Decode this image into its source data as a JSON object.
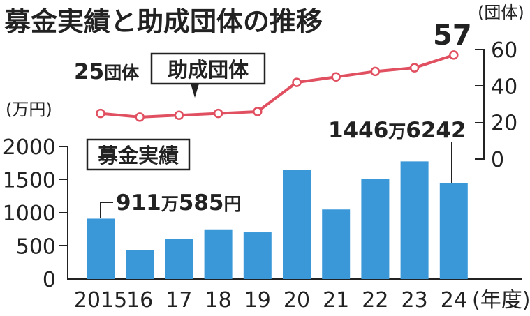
{
  "chart_data": {
    "title": "募金実績と助成団体の推移",
    "type": "bar+line",
    "x_unit": "(年度)",
    "categories": [
      "2015",
      "16",
      "17",
      "18",
      "19",
      "20",
      "21",
      "22",
      "23",
      "24"
    ],
    "bar_series": {
      "name": "募金実績",
      "unit": "(万円)",
      "values": [
        911,
        440,
        600,
        750,
        705,
        1650,
        1050,
        1510,
        1775,
        1446
      ],
      "ylim": [
        0,
        2000
      ],
      "yticks": [
        "0",
        "500",
        "1000",
        "1500",
        "2000"
      ]
    },
    "line_series": {
      "name": "助成団体",
      "unit": "(団体)",
      "values": [
        25,
        23,
        24,
        25,
        26,
        42,
        45,
        48,
        50,
        57
      ],
      "ylim": [
        0,
        60
      ],
      "yticks": [
        "0",
        "20",
        "40",
        "60"
      ]
    },
    "annotations": {
      "line_first": {
        "num": "25",
        "unit": "団体"
      },
      "line_last": "57",
      "bar_first": {
        "a": "911",
        "b": "万",
        "c": "585",
        "d": "円"
      },
      "bar_last": {
        "a": "1446",
        "b": "万",
        "c": "6242"
      }
    },
    "colors": {
      "bar": "#3a98d8",
      "line": "#e05060",
      "marker_fill": "#ffffff"
    }
  }
}
